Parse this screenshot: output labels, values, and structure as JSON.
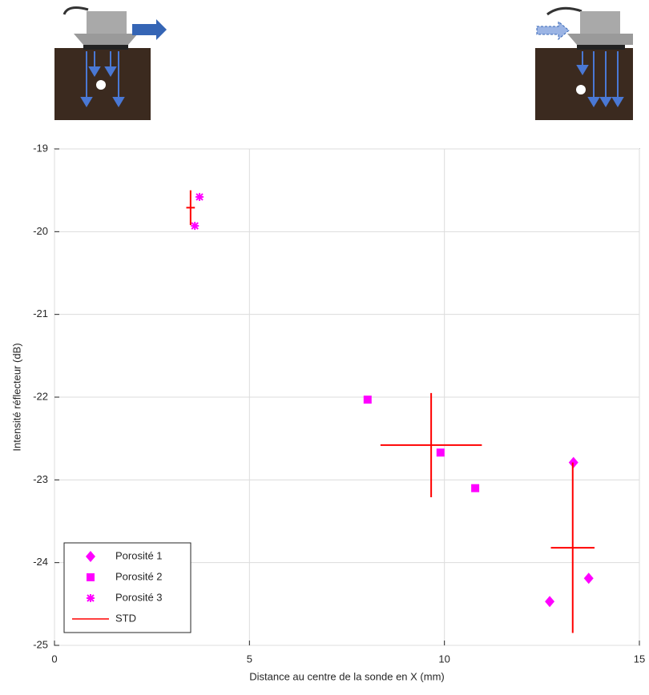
{
  "chart_data": {
    "type": "scatter",
    "x_label": "Distance au centre de la sonde en X (mm)",
    "y_label": "Intensité réflecteur (dB)",
    "xlim": [
      0,
      15
    ],
    "ylim": [
      -25,
      -19
    ],
    "xticks": [
      0,
      5,
      10,
      15
    ],
    "yticks": [
      -25,
      -24,
      -23,
      -22,
      -21,
      -20,
      -19
    ],
    "grid": true,
    "legend": "lower left",
    "series": [
      {
        "name": "Porosité 1",
        "color": "#ff00ff",
        "marker": "diamond",
        "x": [
          13.31,
          12.7,
          13.7
        ],
        "values": [
          -22.79,
          -24.47,
          -24.19
        ]
      },
      {
        "name": "Porosité 2",
        "color": "#ff00ff",
        "marker": "square",
        "x": [
          8.03,
          9.9,
          10.79
        ],
        "values": [
          -22.03,
          -22.67,
          -23.1
        ]
      },
      {
        "name": "Porosité 3",
        "color": "#ff00ff",
        "marker": "asterisk",
        "x": [
          3.72,
          3.6
        ],
        "values": [
          -19.58,
          -19.93
        ]
      },
      {
        "name": "STD",
        "color": "#ff0000",
        "marker": "cross",
        "x": [
          3.49,
          9.66,
          13.29
        ],
        "values": [
          -19.71,
          -22.58,
          -23.82
        ],
        "xerr": [
          0.11,
          1.3,
          0.56
        ],
        "yerr": [
          0.21,
          0.63,
          1.03
        ]
      }
    ]
  }
}
